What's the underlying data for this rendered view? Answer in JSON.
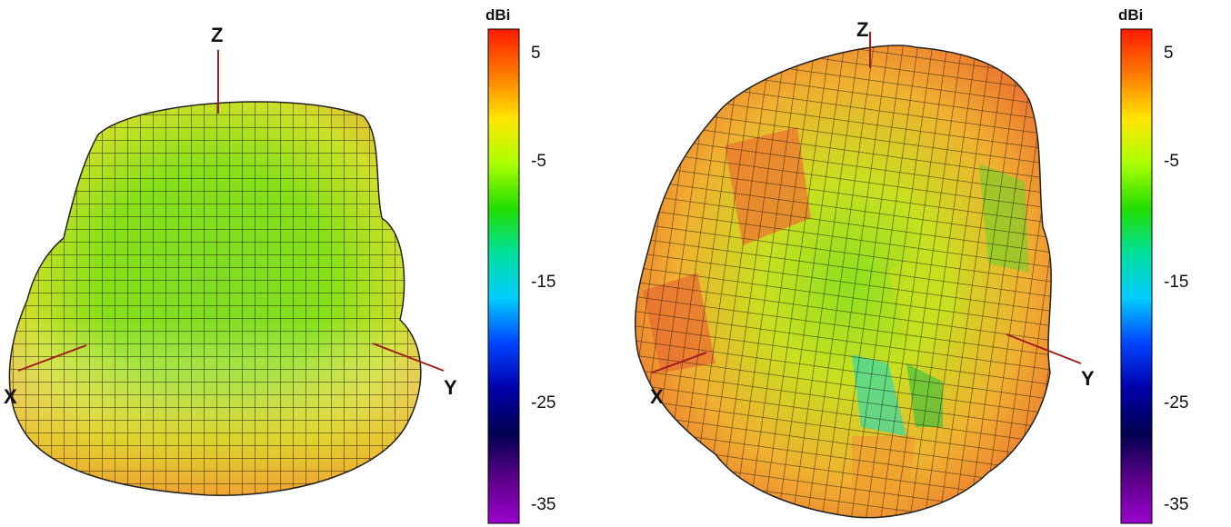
{
  "figures": [
    {
      "axes": {
        "x": "X",
        "y": "Y",
        "z": "Z"
      },
      "colorbar": {
        "unit": "dBi",
        "ticks": [
          "5",
          "-5",
          "-15",
          "-25",
          "-35"
        ]
      }
    },
    {
      "axes": {
        "x": "X",
        "y": "Y",
        "z": "Z"
      },
      "colorbar": {
        "unit": "dBi",
        "ticks": [
          "5",
          "-5",
          "-15",
          "-25",
          "-35"
        ]
      }
    }
  ],
  "colormap": [
    "#ff1a00",
    "#ff7a00",
    "#ffe600",
    "#aaff00",
    "#22dd00",
    "#00e0a0",
    "#00ccff",
    "#0044ff",
    "#0000aa",
    "#000050",
    "#5a0088",
    "#9a00cc"
  ],
  "colors": {
    "grid": "#111111",
    "axis_line": "#a02020"
  }
}
